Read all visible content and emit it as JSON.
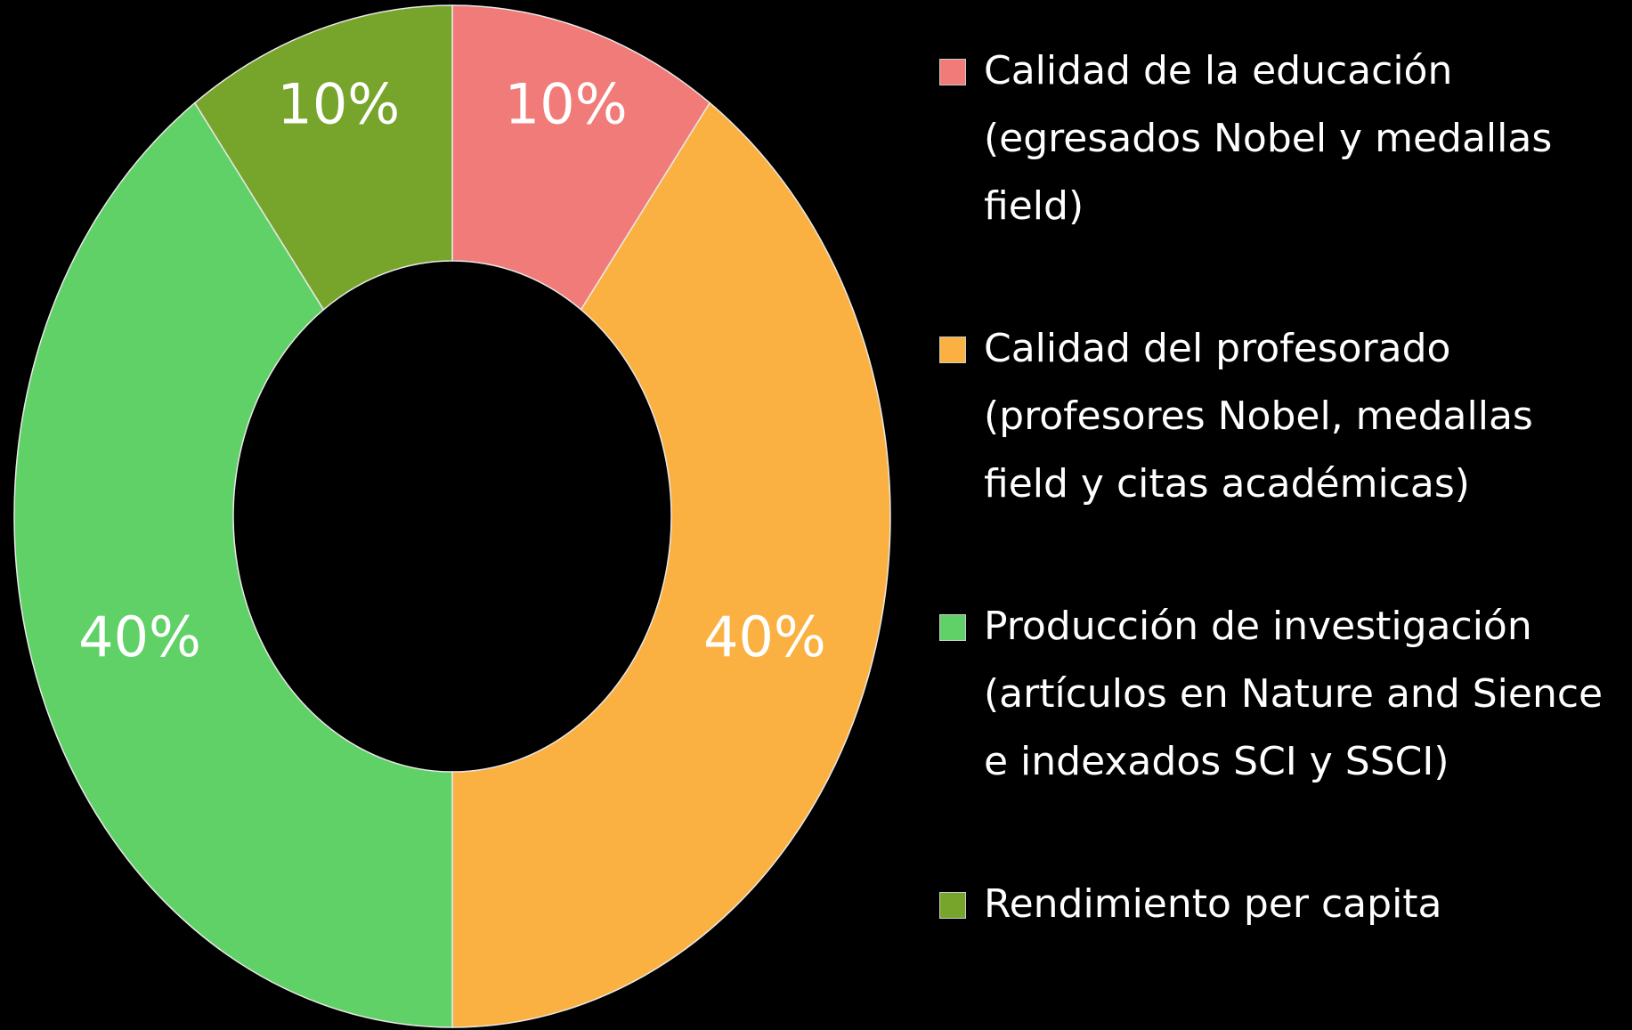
{
  "chart_data": {
    "type": "donut",
    "categories": [
      "Calidad de la educación (egresados Nobel y medallas field)",
      "Calidad del profesorado (profesores Nobel, medallas field y citas académicas)",
      "Producción de investigación (artículos en Nature and Sience e indexados SCI y SSCI)",
      "Rendimiento per capita"
    ],
    "values": [
      10,
      40,
      40,
      10
    ],
    "value_labels": [
      "10%",
      "40%",
      "40%",
      "10%"
    ],
    "colors": [
      "#f07b78",
      "#fbb141",
      "#60d166",
      "#77a52b"
    ],
    "legend": "right"
  }
}
